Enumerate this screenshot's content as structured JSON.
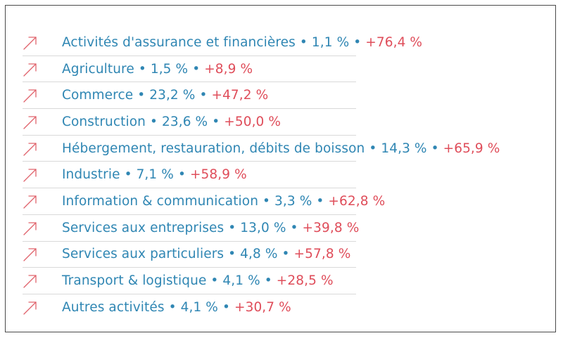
{
  "colors": {
    "label": "#2f86b3",
    "change": "#df4d5a",
    "arrow": "#e0636c",
    "rule": "#d9d9d9",
    "border": "#4a4a4a"
  },
  "icon": "trend-up-arrow-icon",
  "separator": "•",
  "rows": [
    {
      "sector": "Activités d'assurance et financières",
      "share": "1,1 %",
      "change": "+76,4 %"
    },
    {
      "sector": "Agriculture",
      "share": "1,5 %",
      "change": "+8,9 %"
    },
    {
      "sector": "Commerce",
      "share": "23,2 %",
      "change": "+47,2 %"
    },
    {
      "sector": "Construction",
      "share": "23,6 %",
      "change": "+50,0 %"
    },
    {
      "sector": "Hébergement, restauration, débits de boisson",
      "share": "14,3 %",
      "change": "+65,9 %"
    },
    {
      "sector": "Industrie",
      "share": "7,1 %",
      "change": "+58,9 %"
    },
    {
      "sector": "Information & communication",
      "share": "3,3 %",
      "change": "+62,8 %"
    },
    {
      "sector": "Services aux entreprises",
      "share": "13,0 %",
      "change": "+39,8 %"
    },
    {
      "sector": "Services aux particuliers",
      "share": "4,8 %",
      "change": "+57,8 %"
    },
    {
      "sector": "Transport & logistique",
      "share": "4,1 %",
      "change": "+28,5 %"
    },
    {
      "sector": "Autres activités",
      "share": "4,1 %",
      "change": "+30,7 %"
    }
  ]
}
